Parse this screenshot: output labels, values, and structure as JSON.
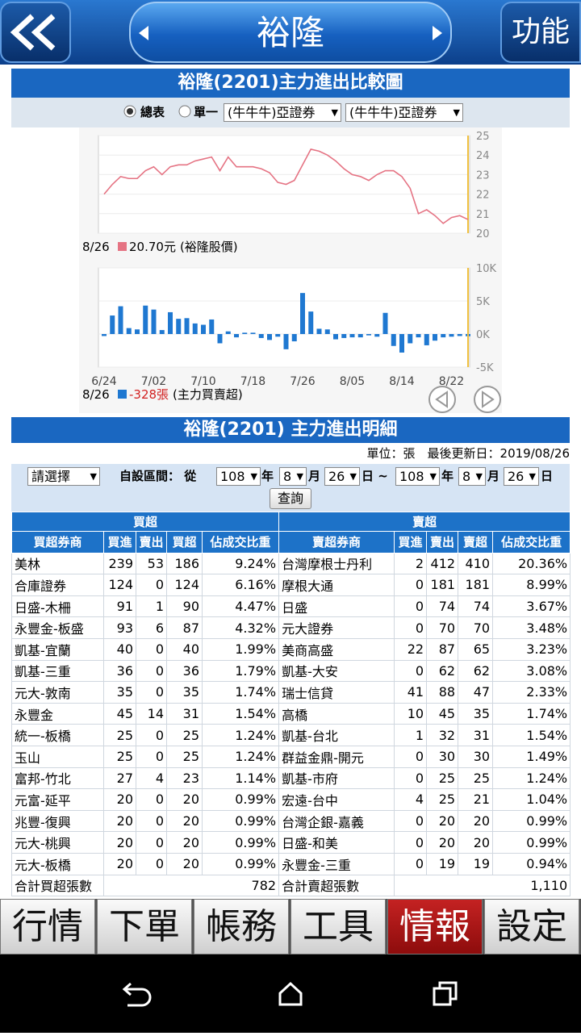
{
  "header": {
    "title": "裕隆",
    "menu": "功能"
  },
  "chart_section": {
    "title": "裕隆(2201)主力進出比較圖",
    "radio_all": "總表",
    "radio_single": "單一",
    "select_1": "(牛牛牛)亞證券",
    "select_2": "(牛牛牛)亞證券"
  },
  "chart_data": [
    {
      "type": "line",
      "series": [
        {
          "name": "(裕隆股價)",
          "color": "#e57383",
          "values": [
            22.0,
            22.5,
            22.9,
            22.8,
            22.8,
            23.2,
            23.4,
            23.0,
            23.4,
            23.5,
            23.5,
            23.7,
            23.8,
            23.9,
            23.2,
            23.9,
            23.4,
            23.4,
            23.4,
            23.3,
            23.1,
            22.6,
            22.5,
            22.7,
            23.5,
            24.3,
            24.2,
            24.0,
            23.7,
            23.3,
            23.0,
            22.9,
            22.7,
            23.0,
            23.2,
            23.2,
            22.9,
            22.3,
            21.0,
            21.2,
            20.9,
            20.5,
            20.8,
            20.9,
            20.7
          ]
        }
      ],
      "ylim": [
        20,
        25
      ],
      "yticks": [
        20,
        21,
        22,
        23,
        24,
        25
      ],
      "grid": true,
      "legend": {
        "date": "8/26",
        "value": "20.70元"
      }
    },
    {
      "type": "bar",
      "categories": [
        "6/24",
        null,
        null,
        null,
        null,
        null,
        "7/02",
        null,
        null,
        null,
        null,
        null,
        "7/10",
        null,
        null,
        null,
        null,
        null,
        "7/18",
        null,
        null,
        null,
        null,
        null,
        "7/26",
        null,
        null,
        null,
        null,
        null,
        "8/05",
        null,
        null,
        null,
        null,
        null,
        "8/14",
        null,
        null,
        null,
        null,
        null,
        "8/22",
        null,
        null
      ],
      "series": [
        {
          "name": "(主力買賣超)",
          "color": "#1f78d1",
          "values": [
            -300,
            2800,
            4200,
            900,
            700,
            4300,
            3700,
            600,
            3300,
            2300,
            2400,
            1600,
            1400,
            2200,
            -1400,
            400,
            -500,
            200,
            200,
            -600,
            -900,
            -400,
            -2300,
            -1100,
            6200,
            3400,
            800,
            700,
            -800,
            -600,
            -500,
            -500,
            -200,
            -400,
            3200,
            -1800,
            -2800,
            -1400,
            -500,
            -1700,
            -1000,
            -500,
            -400,
            -300,
            -328
          ]
        }
      ],
      "ylim": [
        -5000,
        10000
      ],
      "yticks": [
        {
          "value": -5000,
          "label": "-5K"
        },
        {
          "value": 0,
          "label": "0K"
        },
        {
          "value": 5000,
          "label": "5K"
        },
        {
          "value": 10000,
          "label": "10K"
        }
      ],
      "grid": true,
      "legend": {
        "date": "8/26",
        "value": "-328張"
      }
    }
  ],
  "detail": {
    "title": "裕隆(2201) 主力進出明細",
    "info": "單位：張　最後更新日：2019/08/26",
    "form": {
      "broker": "請選擇",
      "range_label": "自設區間： 從",
      "from": {
        "year": "108",
        "month": "8",
        "day": "26"
      },
      "to": {
        "year": "108",
        "month": "8",
        "day": "26"
      },
      "year_unit": "年",
      "month_unit": "月",
      "day_unit_from": "日 ~",
      "day_unit_to": "日",
      "button": "查詢"
    },
    "table": {
      "groups": [
        "買超",
        "賣超"
      ],
      "columns": [
        "買超券商",
        "買進",
        "賣出",
        "買超",
        "佔成交比重",
        "賣超券商",
        "買進",
        "賣出",
        "賣超",
        "佔成交比重"
      ],
      "rows": [
        [
          "美林",
          "239",
          "53",
          "186",
          "9.24%",
          "台灣摩根士丹利",
          "2",
          "412",
          "410",
          "20.36%"
        ],
        [
          "合庫證券",
          "124",
          "0",
          "124",
          "6.16%",
          "摩根大通",
          "0",
          "181",
          "181",
          "8.99%"
        ],
        [
          "日盛-木柵",
          "91",
          "1",
          "90",
          "4.47%",
          "日盛",
          "0",
          "74",
          "74",
          "3.67%"
        ],
        [
          "永豐金-板盛",
          "93",
          "6",
          "87",
          "4.32%",
          "元大證券",
          "0",
          "70",
          "70",
          "3.48%"
        ],
        [
          "凱基-宜蘭",
          "40",
          "0",
          "40",
          "1.99%",
          "美商高盛",
          "22",
          "87",
          "65",
          "3.23%"
        ],
        [
          "凱基-三重",
          "36",
          "0",
          "36",
          "1.79%",
          "凱基-大安",
          "0",
          "62",
          "62",
          "3.08%"
        ],
        [
          "元大-敦南",
          "35",
          "0",
          "35",
          "1.74%",
          "瑞士信貸",
          "41",
          "88",
          "47",
          "2.33%"
        ],
        [
          "永豐金",
          "45",
          "14",
          "31",
          "1.54%",
          "高橋",
          "10",
          "45",
          "35",
          "1.74%"
        ],
        [
          "統一-板橋",
          "25",
          "0",
          "25",
          "1.24%",
          "凱基-台北",
          "1",
          "32",
          "31",
          "1.54%"
        ],
        [
          "玉山",
          "25",
          "0",
          "25",
          "1.24%",
          "群益金鼎-開元",
          "0",
          "30",
          "30",
          "1.49%"
        ],
        [
          "富邦-竹北",
          "27",
          "4",
          "23",
          "1.14%",
          "凱基-市府",
          "0",
          "25",
          "25",
          "1.24%"
        ],
        [
          "元富-延平",
          "20",
          "0",
          "20",
          "0.99%",
          "宏遠-台中",
          "4",
          "25",
          "21",
          "1.04%"
        ],
        [
          "兆豐-復興",
          "20",
          "0",
          "20",
          "0.99%",
          "台灣企銀-嘉義",
          "0",
          "20",
          "20",
          "0.99%"
        ],
        [
          "元大-桃興",
          "20",
          "0",
          "20",
          "0.99%",
          "日盛-和美",
          "0",
          "20",
          "20",
          "0.99%"
        ],
        [
          "元大-板橋",
          "20",
          "0",
          "20",
          "0.99%",
          "永豐金-三重",
          "0",
          "19",
          "19",
          "0.94%"
        ]
      ],
      "totals": [
        "合計買超張數",
        "782",
        "合計賣超張數",
        "1,110"
      ]
    }
  },
  "tabs": {
    "items": [
      "行情",
      "下單",
      "帳務",
      "工具",
      "情報",
      "設定"
    ],
    "active": 4
  }
}
